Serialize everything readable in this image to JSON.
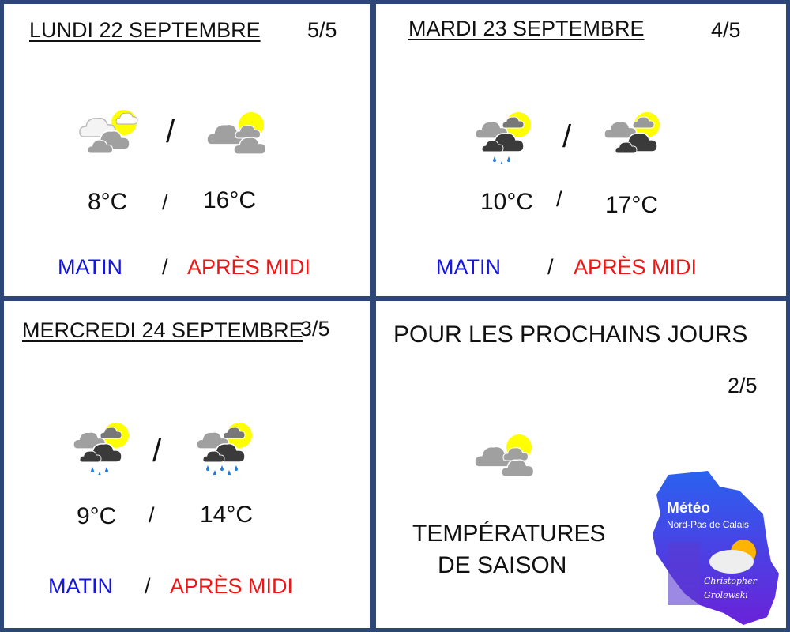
{
  "days": [
    {
      "title": "LUNDI 22 SEPTEMBRE",
      "rating": "5/5",
      "morning_icon": "partly-cloudy-sun-icon",
      "afternoon_icon": "cloudy-sun-icon",
      "morning_temp": "8°C",
      "afternoon_temp": "16°C"
    },
    {
      "title": "MARDI 23 SEPTEMBRE",
      "rating": "4/5",
      "morning_icon": "light-rain-sun-icon",
      "afternoon_icon": "dark-cloud-sun-icon",
      "morning_temp": "10°C",
      "afternoon_temp": "17°C"
    },
    {
      "title": "MERCREDI 24 SEPTEMBRE",
      "rating": "3/5",
      "morning_icon": "light-rain-sun-icon",
      "afternoon_icon": "rain-sun-icon",
      "morning_temp": "9°C",
      "afternoon_temp": "14°C"
    }
  ],
  "labels": {
    "separator": "/",
    "morning": "MATIN",
    "afternoon": "APRÈS MIDI"
  },
  "outlook": {
    "title": "POUR LES PROCHAINS JOURS",
    "rating": "2/5",
    "icon": "cloudy-sun-icon",
    "line1": "TEMPÉRATURES",
    "line2": "DE SAISON"
  },
  "logo": {
    "title": "Météo",
    "subtitle": "Nord-Pas de Calais",
    "author1": "Christopher",
    "author2": "Grolewski"
  },
  "colors": {
    "frame": "#2b4677",
    "morning": "#1414e6",
    "afternoon": "#f01414",
    "sun": "#ffff00"
  }
}
